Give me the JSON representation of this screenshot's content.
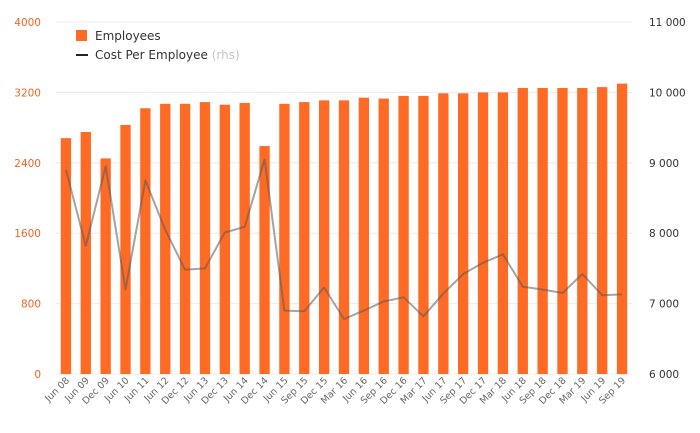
{
  "chart_data": {
    "type": "bar",
    "categories": [
      "Jun 08",
      "Jun 09",
      "Dec 09",
      "Jun 10",
      "Jun 11",
      "Jun 12",
      "Dec 12",
      "Jun 13",
      "Dec 13",
      "Jun 14",
      "Dec 14",
      "Jun 15",
      "Sep 15",
      "Dec 15",
      "Mar 16",
      "Jun 16",
      "Sep 16",
      "Dec 16",
      "Mar 17",
      "Jun 17",
      "Sep 17",
      "Dec 17",
      "Mar 18",
      "Jun 18",
      "Sep 18",
      "Dec 18",
      "Mar 19",
      "Jun 19",
      "Sep 19"
    ],
    "series": [
      {
        "name": "Employees",
        "axis": "left",
        "kind": "bar",
        "color": "#ff6a24",
        "values": [
          2680,
          2750,
          2450,
          2830,
          3020,
          3070,
          3070,
          3090,
          3060,
          3080,
          2590,
          3070,
          3090,
          3110,
          3110,
          3140,
          3130,
          3160,
          3160,
          3190,
          3190,
          3200,
          3200,
          3250,
          3250,
          3250,
          3250,
          3260,
          3300
        ]
      },
      {
        "name": "Cost Per Employee",
        "axis": "right",
        "kind": "line",
        "color": "#5a5a5a",
        "values": [
          8900,
          7820,
          8950,
          7200,
          8750,
          8050,
          7480,
          7500,
          8010,
          8090,
          9050,
          6900,
          6890,
          7230,
          6780,
          6900,
          7030,
          7090,
          6820,
          7140,
          7420,
          7580,
          7700,
          7240,
          7200,
          7150,
          7420,
          7120,
          7130
        ]
      }
    ],
    "legend": {
      "employees_label": "Employees",
      "cost_label": "Cost Per Employee",
      "cost_note": "(rhs)",
      "position": "top-left"
    },
    "left_axis": {
      "ylim": [
        0,
        4000
      ],
      "ticks": [
        "0",
        "800",
        "1600",
        "2400",
        "3200",
        "4000"
      ]
    },
    "right_axis": {
      "ylim": [
        6000,
        11000
      ],
      "ticks": [
        "6 000",
        "7 000",
        "8 000",
        "9 000",
        "10 000",
        "11 000"
      ]
    },
    "grid": true,
    "title": "",
    "xlabel": "",
    "ylabel": ""
  }
}
